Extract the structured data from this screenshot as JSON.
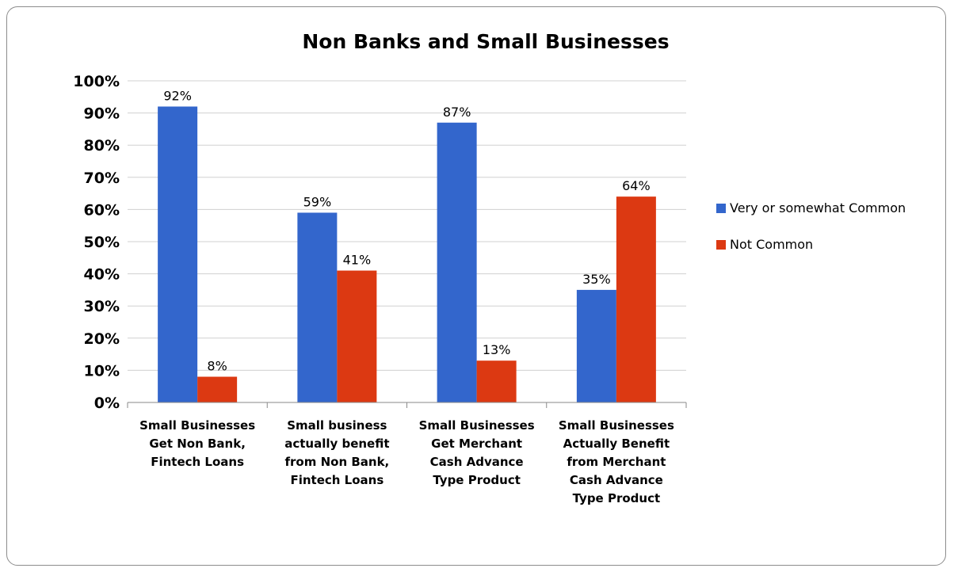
{
  "chart_data": {
    "type": "bar",
    "title": "Non Banks and Small Businesses",
    "categories": [
      [
        "Small Businesses",
        "Get Non Bank,",
        "Fintech Loans"
      ],
      [
        "Small business",
        "actually benefit",
        "from Non Bank,",
        "Fintech Loans"
      ],
      [
        "Small Businesses",
        "Get Merchant",
        "Cash Advance",
        "Type Product"
      ],
      [
        "Small Businesses",
        "Actually Benefit",
        "from Merchant",
        "Cash Advance",
        "Type Product"
      ]
    ],
    "series": [
      {
        "name": "Very or somewhat Common",
        "color": "#3366cc",
        "values": [
          92,
          59,
          87,
          35
        ],
        "labels": [
          "92%",
          "59%",
          "87%",
          "35%"
        ]
      },
      {
        "name": "Not Common",
        "color": "#dc3912",
        "values": [
          8,
          41,
          13,
          64
        ],
        "labels": [
          "8%",
          "41%",
          "13%",
          "64%"
        ]
      }
    ],
    "ylim": [
      0,
      100
    ],
    "yticks": [
      "0%",
      "10%",
      "20%",
      "30%",
      "40%",
      "50%",
      "60%",
      "70%",
      "80%",
      "90%",
      "100%"
    ],
    "grid": true,
    "legend_position": "right"
  }
}
